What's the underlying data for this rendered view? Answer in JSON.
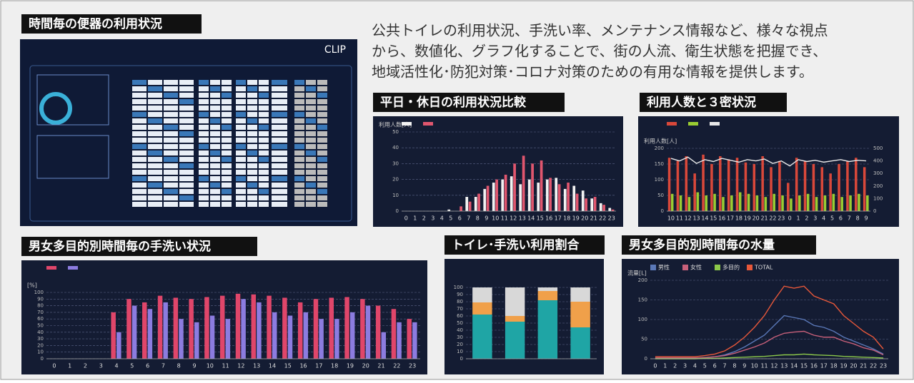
{
  "description": [
    "公共トイレの利用状況、手洗い率、メンテナンス情報など、様々な視点",
    "から、数値化、グラフ化することで、街の人流、衛生状態を把握でき、",
    "地域活性化･防犯対策･コロナ対策のための有用な情報を提供します。"
  ],
  "dashboard": {
    "title": "時間毎の便器の利用状況",
    "logo": "CLIP"
  },
  "weekday": {
    "title": "平日・休日の利用状況比較",
    "chart": {
      "type": "bar",
      "y_label": "利用人数[人]",
      "grid": true,
      "categories": [
        0,
        1,
        2,
        3,
        4,
        5,
        6,
        7,
        8,
        9,
        10,
        11,
        12,
        13,
        14,
        15,
        16,
        17,
        18,
        19,
        20,
        21,
        22,
        23
      ],
      "ylim": [
        0,
        50
      ],
      "yticks": [
        0,
        10,
        20,
        30,
        40,
        50
      ],
      "series": [
        {
          "color": "#f2f2f2",
          "values": [
            0,
            0,
            0,
            0,
            0,
            1,
            0,
            9,
            9,
            14,
            18,
            20,
            22,
            17,
            20,
            18,
            20,
            21,
            14,
            16,
            13,
            8,
            5,
            2
          ]
        },
        {
          "color": "#e0566e",
          "values": [
            0,
            0,
            0,
            0,
            0,
            0,
            3,
            6,
            11,
            16,
            20,
            23,
            30,
            35,
            30,
            32,
            21,
            17,
            18,
            11,
            8,
            9,
            4,
            1
          ]
        }
      ]
    }
  },
  "crowd": {
    "title": "利用人数と３密状況",
    "chart": {
      "type": "bar",
      "y_label": "利用人数[人]",
      "grid": true,
      "categories": [
        10,
        11,
        12,
        13,
        14,
        15,
        16,
        17,
        18,
        19,
        20,
        21,
        22,
        23,
        0,
        1,
        2,
        3,
        4,
        5,
        6,
        7,
        8,
        9
      ],
      "ylim": [
        0,
        200
      ],
      "yticks": [
        0,
        50,
        100,
        150,
        200
      ],
      "y2lim": [
        0,
        500
      ],
      "y2ticks": [
        0,
        100,
        200,
        300,
        400,
        500
      ],
      "series": [
        {
          "color": "#d9483a",
          "values": [
            170,
            160,
            175,
            120,
            180,
            150,
            175,
            165,
            170,
            155,
            150,
            175,
            140,
            160,
            90,
            170,
            160,
            150,
            140,
            120,
            150,
            160,
            170,
            140
          ]
        },
        {
          "color": "#9acd32",
          "values": [
            55,
            50,
            45,
            60,
            50,
            55,
            45,
            50,
            60,
            55,
            50,
            45,
            55,
            50,
            40,
            50,
            55,
            45,
            50,
            55,
            45,
            50,
            55,
            50
          ]
        },
        {
          "type": "line",
          "axis": "y2",
          "color": "#e8e8e8",
          "values": [
            420,
            400,
            430,
            380,
            410,
            395,
            420,
            405,
            390,
            410,
            400,
            415,
            380,
            400,
            360,
            410,
            395,
            405,
            390,
            400,
            410,
            395,
            405,
            400
          ]
        }
      ]
    }
  },
  "handwash": {
    "title": "男女多目的別時間毎の手洗い状況",
    "chart": {
      "type": "bar",
      "y_label": "[%]",
      "grid": true,
      "categories": [
        0,
        1,
        2,
        3,
        4,
        5,
        6,
        7,
        8,
        9,
        10,
        11,
        12,
        13,
        14,
        15,
        16,
        17,
        18,
        19,
        20,
        21,
        22,
        23
      ],
      "ylim": [
        0,
        100
      ],
      "yticks": [
        0,
        10,
        20,
        30,
        40,
        50,
        60,
        70,
        80,
        90,
        100
      ],
      "series": [
        {
          "color": "#e0466a",
          "values": [
            0,
            0,
            0,
            0,
            70,
            90,
            85,
            95,
            92,
            90,
            93,
            95,
            98,
            97,
            95,
            92,
            85,
            90,
            92,
            93,
            90,
            80,
            75,
            60
          ]
        },
        {
          "color": "#8c7ce0",
          "values": [
            0,
            0,
            0,
            0,
            40,
            80,
            75,
            85,
            60,
            55,
            65,
            60,
            90,
            85,
            70,
            65,
            70,
            60,
            60,
            70,
            80,
            40,
            55,
            55
          ]
        }
      ]
    }
  },
  "ratio": {
    "title": "トイレ･手洗い利用割合",
    "chart": {
      "type": "stacked",
      "grid": true,
      "categories": [
        null,
        null,
        null,
        null
      ],
      "ylim": [
        0,
        100
      ],
      "yticks": [
        0,
        10,
        20,
        30,
        40,
        50,
        60,
        70,
        80,
        90,
        100
      ],
      "series": [
        {
          "color": "#1fa5a5",
          "values": [
            62,
            52,
            82,
            44
          ]
        },
        {
          "color": "#f0a04a",
          "values": [
            17,
            8,
            13,
            36
          ]
        },
        {
          "color": "#d8d8d8",
          "values": [
            21,
            40,
            5,
            20
          ]
        }
      ]
    }
  },
  "water": {
    "title": "男女多目的別時間毎の水量",
    "chart": {
      "type": "line",
      "y_label": "流量[L]",
      "grid": true,
      "categories": [
        0,
        1,
        2,
        3,
        4,
        5,
        6,
        7,
        8,
        9,
        10,
        11,
        12,
        13,
        14,
        15,
        16,
        17,
        18,
        19,
        20,
        21,
        22,
        23
      ],
      "ylim": [
        0,
        200
      ],
      "yticks": [
        0,
        50,
        100,
        150,
        200
      ],
      "series": [
        {
          "name": "男性",
          "color": "#5a78b8",
          "values": [
            2,
            2,
            2,
            2,
            2,
            3,
            5,
            10,
            18,
            30,
            45,
            60,
            85,
            110,
            105,
            100,
            85,
            80,
            70,
            55,
            45,
            35,
            25,
            12
          ]
        },
        {
          "name": "女性",
          "color": "#c8607a",
          "values": [
            2,
            2,
            2,
            2,
            2,
            3,
            5,
            8,
            14,
            22,
            30,
            40,
            55,
            65,
            68,
            70,
            60,
            55,
            55,
            45,
            38,
            28,
            22,
            10
          ]
        },
        {
          "name": "多目的",
          "color": "#8cc84a",
          "values": [
            0,
            0,
            0,
            0,
            0,
            1,
            1,
            2,
            3,
            4,
            5,
            6,
            8,
            10,
            10,
            12,
            10,
            9,
            8,
            6,
            5,
            4,
            3,
            2
          ]
        },
        {
          "name": "TOTAL",
          "color": "#e8583a",
          "values": [
            5,
            5,
            5,
            5,
            5,
            8,
            12,
            20,
            35,
            55,
            80,
            110,
            150,
            185,
            180,
            185,
            160,
            150,
            140,
            110,
            90,
            70,
            55,
            25
          ]
        }
      ]
    }
  }
}
